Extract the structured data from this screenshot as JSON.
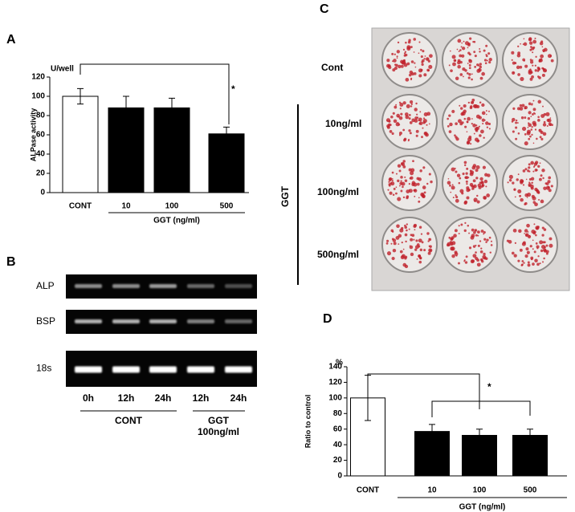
{
  "chart_data": [
    {
      "type": "bar",
      "panel": "A",
      "unit": "U/well",
      "ylabel": "ALPase activity",
      "categories": [
        "CONT",
        "10",
        "100",
        "500"
      ],
      "values": [
        100,
        88,
        88,
        61
      ],
      "errors": [
        8,
        12,
        10,
        7
      ],
      "colors": [
        "#ffffff",
        "#000000",
        "#000000",
        "#000000"
      ],
      "ylim": [
        0,
        120
      ],
      "yticks": [
        0,
        20,
        40,
        60,
        80,
        100,
        120
      ],
      "group_label": "GGT (ng/ml)",
      "annotation": "*"
    },
    {
      "type": "bar",
      "panel": "D",
      "unit": "%",
      "ylabel": "Ratio to control",
      "categories": [
        "CONT",
        "10",
        "100",
        "500"
      ],
      "values": [
        100,
        57,
        52,
        52
      ],
      "errors": [
        29,
        9,
        8,
        8
      ],
      "colors": [
        "#ffffff",
        "#000000",
        "#000000",
        "#000000"
      ],
      "ylim": [
        0,
        140
      ],
      "yticks": [
        0,
        20,
        40,
        60,
        80,
        100,
        120,
        140
      ],
      "group_label": "GGT (ng/ml)",
      "annotation": "*"
    }
  ],
  "gel": {
    "panel": "B",
    "rows": [
      "ALP",
      "BSP",
      "18s"
    ],
    "lanes": [
      "0h",
      "12h",
      "24h",
      "12h",
      "24h"
    ],
    "groups": [
      {
        "label": [
          "CONT"
        ]
      },
      {
        "label": [
          "GGT",
          "100ng/ml"
        ]
      }
    ]
  },
  "plate": {
    "panel": "C",
    "rows": [
      "Cont",
      "10ng/ml",
      "100ng/ml",
      "500ng/ml"
    ],
    "side_label": "GGT"
  }
}
